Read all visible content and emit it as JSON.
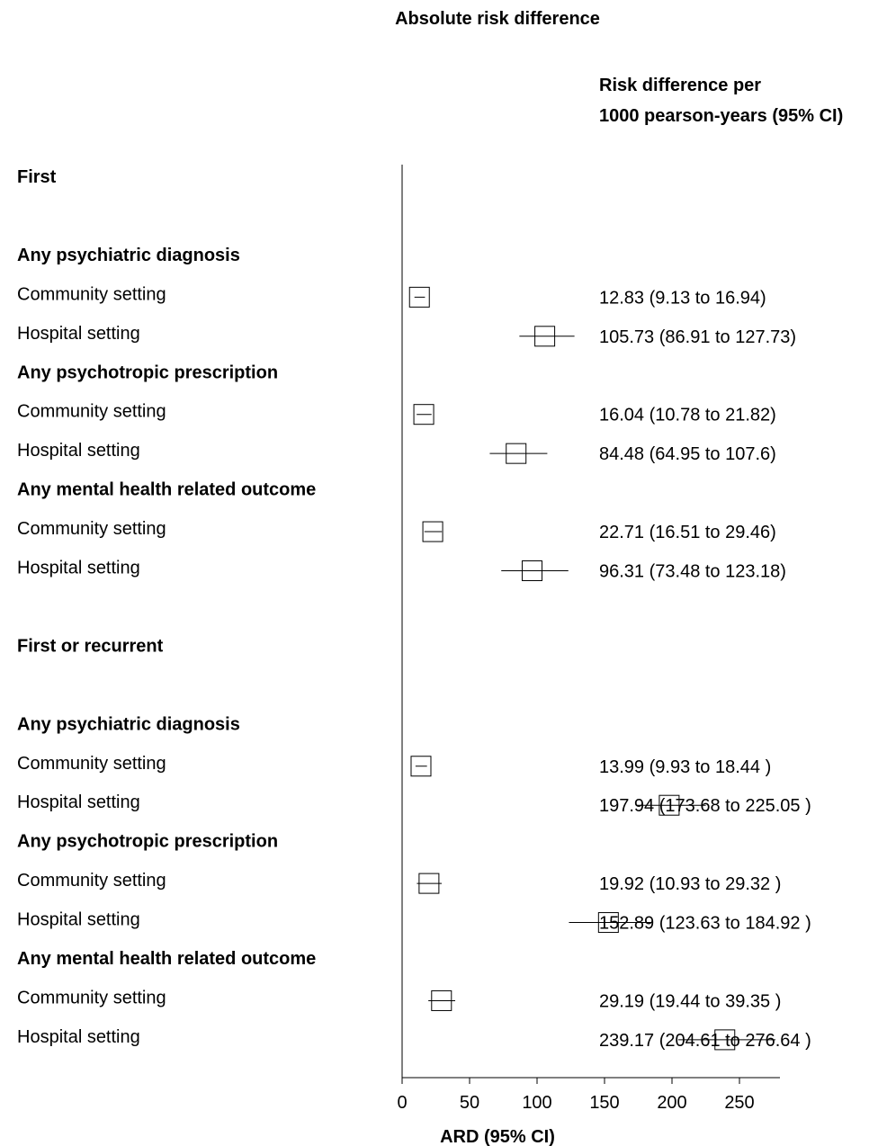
{
  "chart_data": {
    "type": "forest",
    "title": "Absolute risk difference",
    "estimate_header": [
      "Risk difference per",
      "1000 pearson-years (95% CI)"
    ],
    "xlabel": "ARD (95% CI)",
    "xlim": [
      0,
      280
    ],
    "xticks": [
      0,
      50,
      100,
      150,
      200,
      250
    ],
    "xtick_labels": [
      "0",
      "50",
      "100",
      "150",
      "200",
      "250"
    ],
    "reference_line": 0,
    "rows": [
      {
        "label": "First",
        "kind": "heading"
      },
      {
        "kind": "spacer"
      },
      {
        "label": "Any psychiatric diagnosis",
        "kind": "group"
      },
      {
        "label": "Community setting",
        "kind": "estimate",
        "est": 12.83,
        "lo": 9.13,
        "hi": 16.94,
        "text": "12.83 (9.13 to 16.94)"
      },
      {
        "label": "Hospital setting",
        "kind": "estimate",
        "est": 105.73,
        "lo": 86.91,
        "hi": 127.73,
        "text": "105.73 (86.91 to 127.73)"
      },
      {
        "label": "Any psychotropic prescription",
        "kind": "group"
      },
      {
        "label": "Community setting",
        "kind": "estimate",
        "est": 16.04,
        "lo": 10.78,
        "hi": 21.82,
        "text": "16.04 (10.78 to 21.82)"
      },
      {
        "label": "Hospital setting",
        "kind": "estimate",
        "est": 84.48,
        "lo": 64.95,
        "hi": 107.6,
        "text": "84.48 (64.95 to 107.6)"
      },
      {
        "label": "Any mental health related outcome",
        "kind": "group"
      },
      {
        "label": "Community setting",
        "kind": "estimate",
        "est": 22.71,
        "lo": 16.51,
        "hi": 29.46,
        "text": "22.71 (16.51 to 29.46)"
      },
      {
        "label": "Hospital setting",
        "kind": "estimate",
        "est": 96.31,
        "lo": 73.48,
        "hi": 123.18,
        "text": "96.31 (73.48 to 123.18)"
      },
      {
        "kind": "spacer"
      },
      {
        "label": "First or recurrent",
        "kind": "heading"
      },
      {
        "kind": "spacer"
      },
      {
        "label": "Any psychiatric diagnosis",
        "kind": "group"
      },
      {
        "label": "Community setting",
        "kind": "estimate",
        "est": 13.99,
        "lo": 9.93,
        "hi": 18.44,
        "text": "13.99 (9.93 to 18.44 )"
      },
      {
        "label": "Hospital setting",
        "kind": "estimate",
        "est": 197.94,
        "lo": 173.68,
        "hi": 225.05,
        "text": "197.94 (173.68 to 225.05 )"
      },
      {
        "label": "Any psychotropic prescription",
        "kind": "group"
      },
      {
        "label": "Community setting",
        "kind": "estimate",
        "est": 19.92,
        "lo": 10.93,
        "hi": 29.32,
        "text": "19.92 (10.93 to 29.32 )"
      },
      {
        "label": "Hospital setting",
        "kind": "estimate",
        "est": 152.89,
        "lo": 123.63,
        "hi": 184.92,
        "text": "152.89 (123.63 to 184.92 )"
      },
      {
        "label": "Any mental health related outcome",
        "kind": "group"
      },
      {
        "label": "Community setting",
        "kind": "estimate",
        "est": 29.19,
        "lo": 19.44,
        "hi": 39.35,
        "text": "29.19 (19.44 to 39.35 )"
      },
      {
        "label": "Hospital setting",
        "kind": "estimate",
        "est": 239.17,
        "lo": 204.61,
        "hi": 276.64,
        "text": "239.17 (204.61 to 276.64 )"
      }
    ]
  }
}
